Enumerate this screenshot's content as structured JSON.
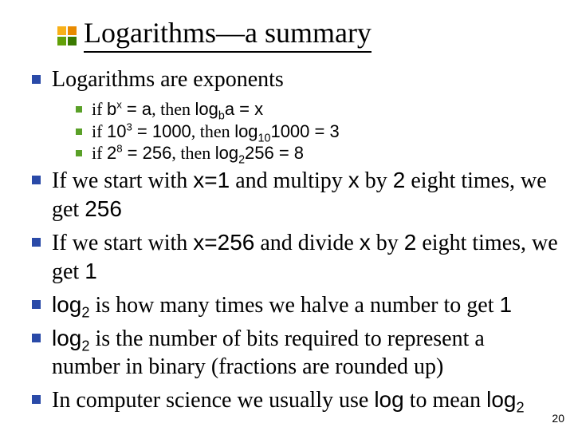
{
  "accent": {
    "colors": [
      "#f8b018",
      "#e88a00",
      "#62a008",
      "#3a7a00"
    ]
  },
  "bullet_color_lvl1": "#2a4aa8",
  "bullet_color_lvl2": "#5aa028",
  "title": "Logarithms—a summary",
  "b1": "Logarithms are exponents",
  "s1_pre": "if ",
  "s1_mid": ", then ",
  "s2_pre": "if  ",
  "s2_mid": ", then ",
  "s3_pre": "if  ",
  "s3_mid": ", then ",
  "b2_a": "If we start with ",
  "b2_b": " and multipy ",
  "b2_c": " by ",
  "b2_d": " eight times, we get ",
  "b3_a": "If we start with ",
  "b3_b": " and divide ",
  "b3_c": " by ",
  "b3_d": " eight times, we get ",
  "b4_a": " is how many times we halve a number to get ",
  "b5_a": " is the number of bits required to represent a number in binary (fractions are rounded up)",
  "b6_a": "In computer science we usually use ",
  "b6_b": " to mean ",
  "m": {
    "bx": "b",
    "bx_sup": "x",
    "eq_a": " = a",
    "logba": "log",
    "logba_sub": "b",
    "logba_tail": "a = x",
    "ten3": "10",
    "ten3_sup": "3",
    "eq1000": " = 1000",
    "log10": "log",
    "log10_sub": "10",
    "log10_tail": "1000 = 3",
    "two8": "2",
    "two8_sup": "8",
    "eq256": " = 256",
    "log2_256": "log",
    "log2_256_sub": "2",
    "log2_256_tail": "256 = 8",
    "x1": "x=1",
    "x": "x",
    "two": "2",
    "v256": "256",
    "x256": "x=256",
    "one": "1",
    "log2": "log",
    "log2_sub": "2",
    "log": "log"
  },
  "page": "20"
}
